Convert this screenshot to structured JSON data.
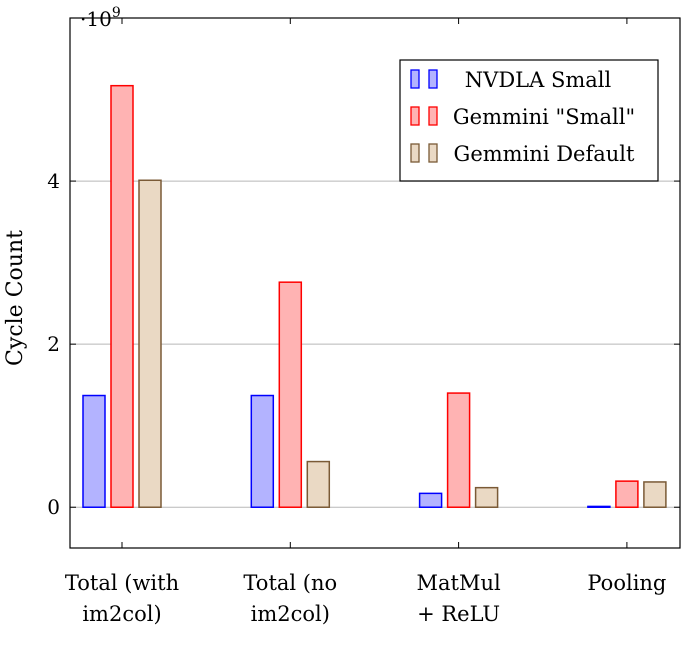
{
  "chart_data": {
    "type": "bar",
    "ylabel": "Cycle Count",
    "y_scale_label": "·10",
    "y_scale_exp": "9",
    "ylim": [
      -0.5,
      6
    ],
    "yticks": [
      0,
      2,
      4
    ],
    "ytick_labels": [
      "0",
      "2",
      "4"
    ],
    "grid": "horizontal",
    "legend_position": "top-right",
    "categories": [
      [
        "Total (with",
        "im2col)"
      ],
      [
        "Total (no",
        "im2col)"
      ],
      [
        "MatMul",
        "+ ReLU"
      ],
      [
        "Pooling"
      ]
    ],
    "series": [
      {
        "name": "NVDLA Small",
        "fill": "#b3b3ff",
        "stroke": "#0000ff",
        "values": [
          1.37,
          1.37,
          0.17,
          0.01
        ]
      },
      {
        "name": "Gemmini \"Small\"",
        "fill": "#ffb3b3",
        "stroke": "#ff0000",
        "values": [
          5.17,
          2.76,
          1.4,
          0.32
        ]
      },
      {
        "name": "Gemmini Default",
        "fill": "#ead9c4",
        "stroke": "#7a5a36",
        "values": [
          4.01,
          0.56,
          0.24,
          0.31
        ]
      }
    ]
  }
}
